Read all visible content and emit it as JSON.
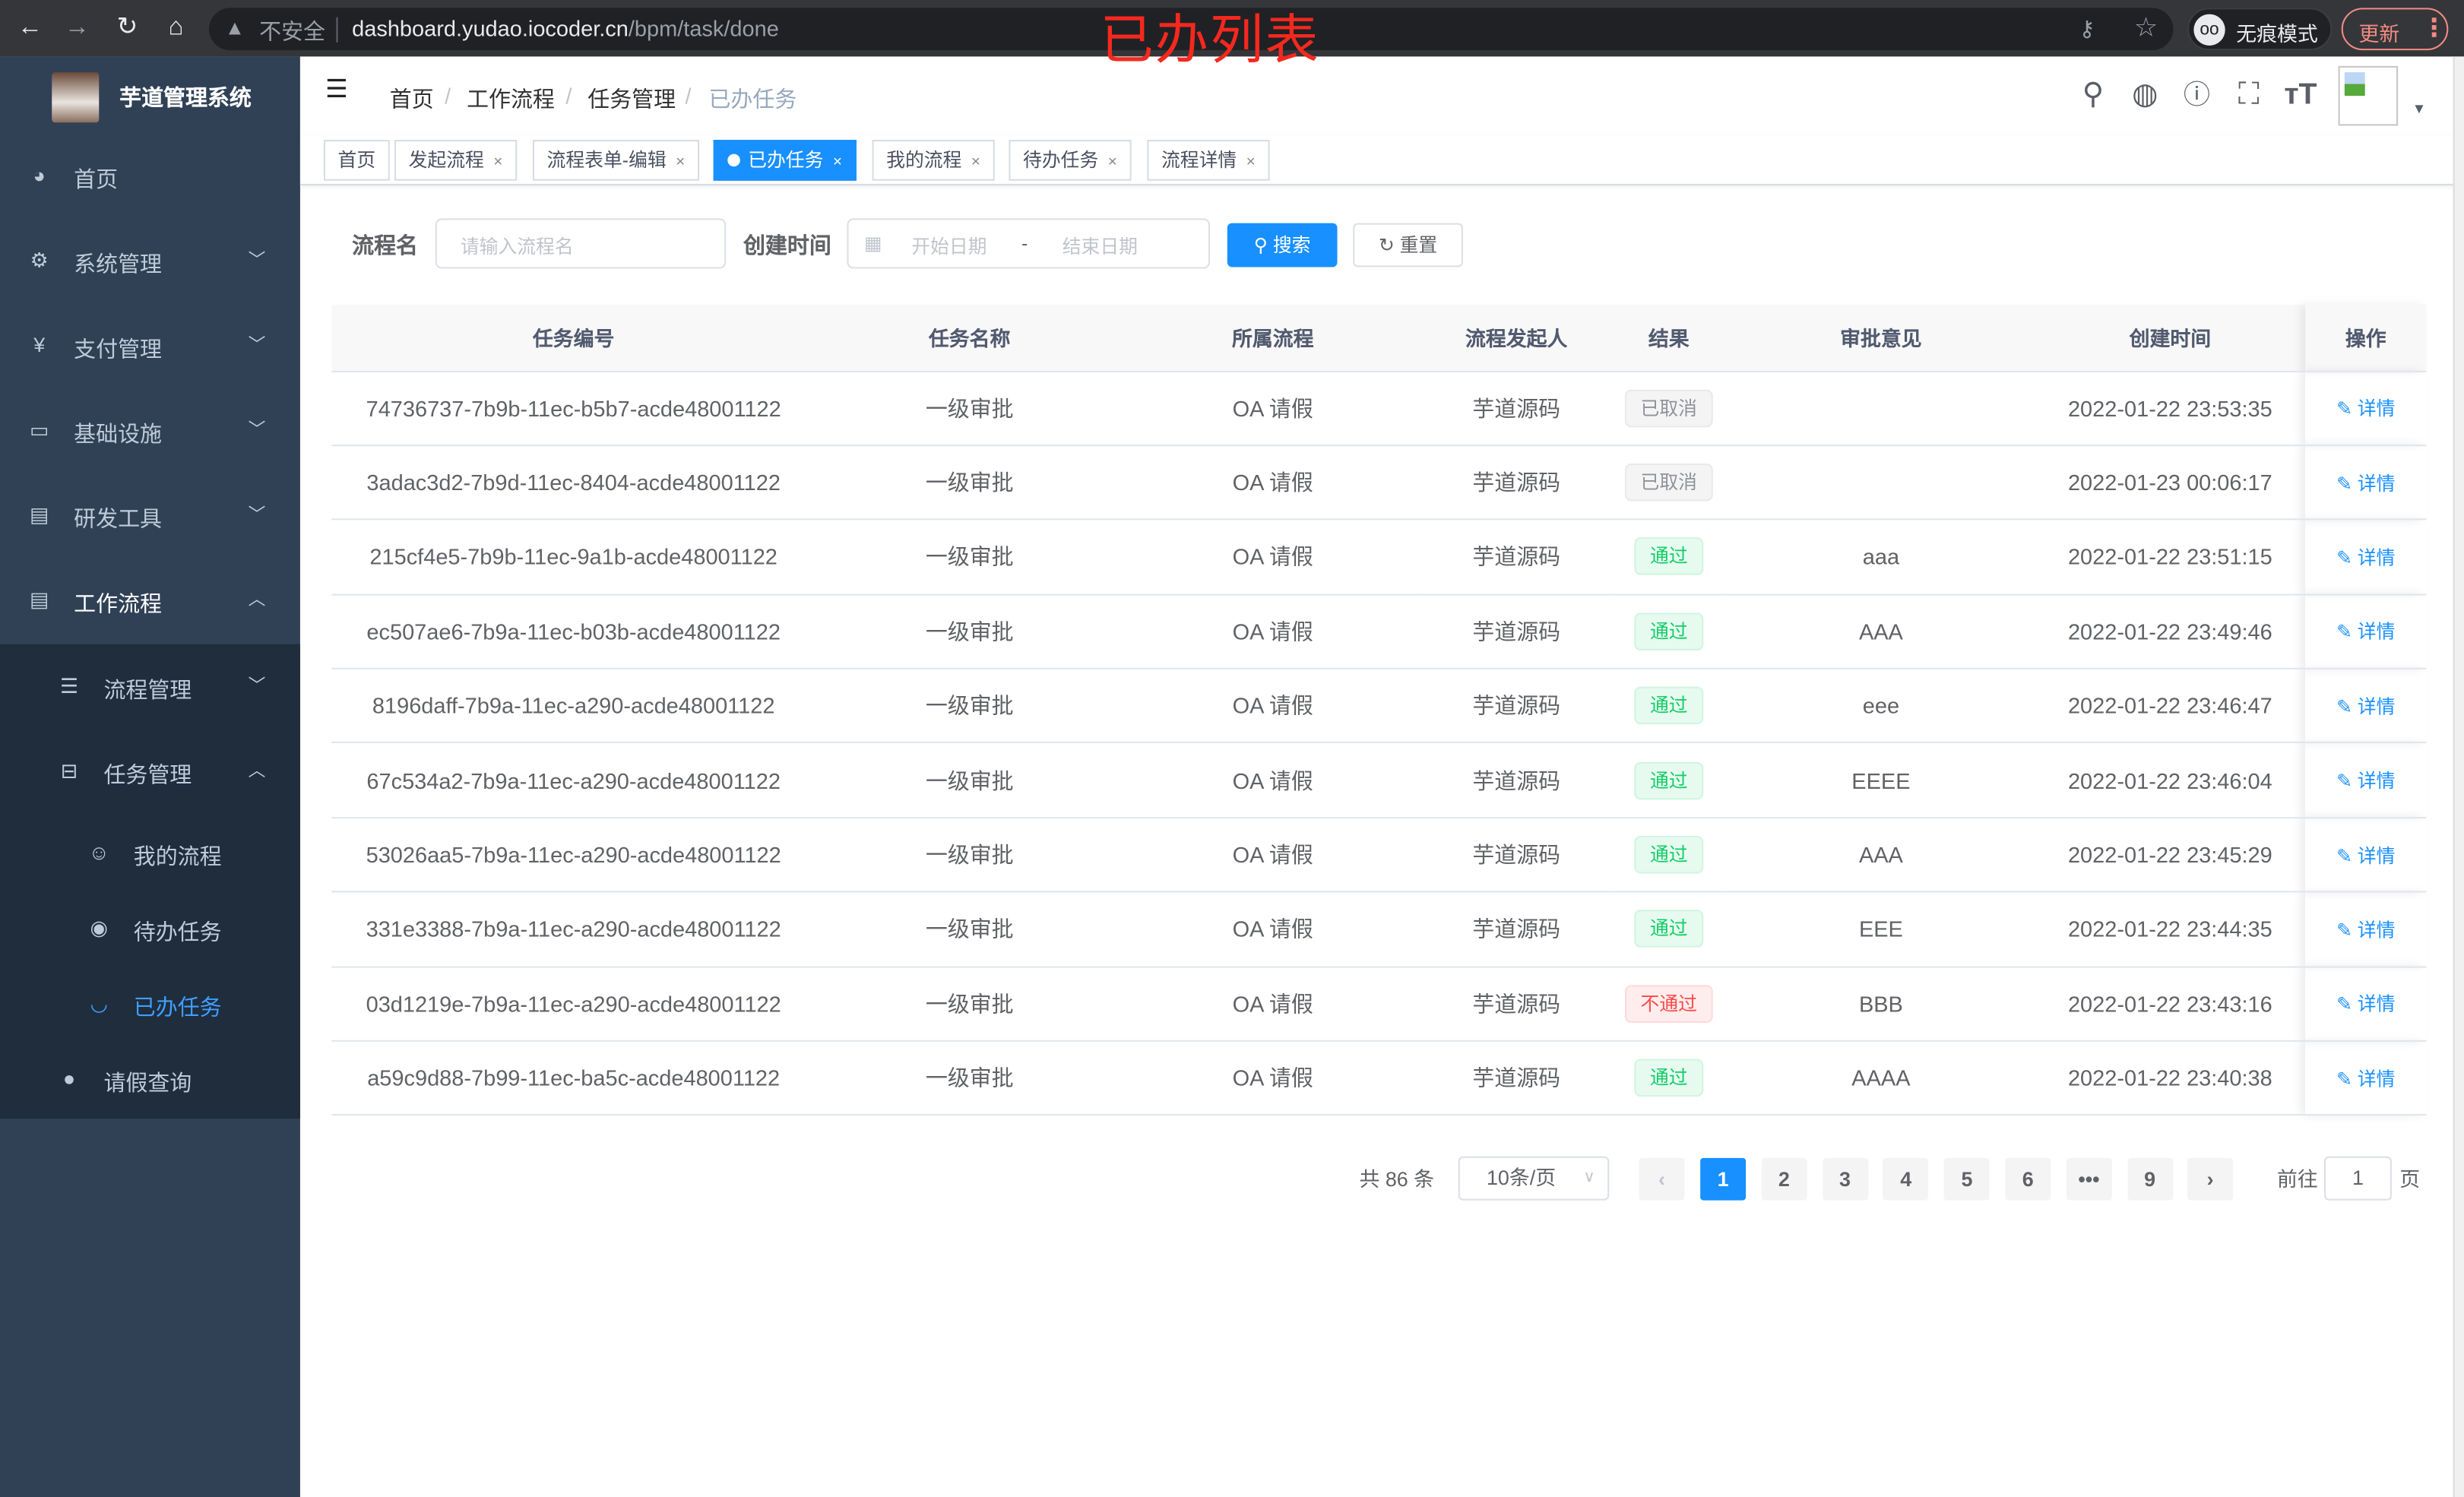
{
  "browser": {
    "insecure_label": "不安全",
    "url_host": "dashboard.yudao.iocoder.cn",
    "url_path": "/bpm/task/done",
    "incognito_label": "无痕模式",
    "update_label": "更新"
  },
  "overlay_title": "已办列表",
  "sidebar": {
    "app_name": "芋道管理系统",
    "items": [
      {
        "label": "首页",
        "icon": "dashboard-icon"
      },
      {
        "label": "系统管理",
        "icon": "gear-icon"
      },
      {
        "label": "支付管理",
        "icon": "yen-icon"
      },
      {
        "label": "基础设施",
        "icon": "monitor-icon"
      },
      {
        "label": "研发工具",
        "icon": "toolbox-icon"
      },
      {
        "label": "工作流程",
        "icon": "toolbox-icon"
      }
    ],
    "workflow_children": [
      {
        "label": "流程管理",
        "icon": "tree-list-icon"
      },
      {
        "label": "任务管理",
        "icon": "tree-icon"
      },
      {
        "label": "我的流程",
        "icon": "chat-icon"
      },
      {
        "label": "待办任务",
        "icon": "eye-icon"
      },
      {
        "label": "已办任务",
        "icon": "eye-closed-icon",
        "active": true
      },
      {
        "label": "请假查询",
        "icon": "user-icon"
      }
    ]
  },
  "breadcrumb": [
    "首页",
    "工作流程",
    "任务管理",
    "已办任务"
  ],
  "tags": [
    {
      "label": "首页",
      "closable": false
    },
    {
      "label": "发起流程",
      "closable": true
    },
    {
      "label": "流程表单-编辑",
      "closable": true
    },
    {
      "label": "已办任务",
      "closable": true,
      "active": true
    },
    {
      "label": "我的流程",
      "closable": true
    },
    {
      "label": "待办任务",
      "closable": true
    },
    {
      "label": "流程详情",
      "closable": true
    }
  ],
  "filters": {
    "name_label": "流程名",
    "name_placeholder": "请输入流程名",
    "time_label": "创建时间",
    "start_placeholder": "开始日期",
    "range_sep": "-",
    "end_placeholder": "结束日期",
    "search_label": "搜索",
    "reset_label": "重置"
  },
  "table": {
    "columns": [
      "任务编号",
      "任务名称",
      "所属流程",
      "流程发起人",
      "结果",
      "审批意见",
      "创建时间",
      "操作"
    ],
    "rows": [
      {
        "id": "74736737-7b9b-11ec-b5b7-acde48001122",
        "name": "一级审批",
        "process": "OA 请假",
        "starter": "芋道源码",
        "result": "已取消",
        "result_type": "info",
        "comment": "",
        "time": "2022-01-22 23:53:35",
        "action": "详情"
      },
      {
        "id": "3adac3d2-7b9d-11ec-8404-acde48001122",
        "name": "一级审批",
        "process": "OA 请假",
        "starter": "芋道源码",
        "result": "已取消",
        "result_type": "info",
        "comment": "",
        "time": "2022-01-23 00:06:17",
        "action": "详情"
      },
      {
        "id": "215cf4e5-7b9b-11ec-9a1b-acde48001122",
        "name": "一级审批",
        "process": "OA 请假",
        "starter": "芋道源码",
        "result": "通过",
        "result_type": "success",
        "comment": "aaa",
        "time": "2022-01-22 23:51:15",
        "action": "详情"
      },
      {
        "id": "ec507ae6-7b9a-11ec-b03b-acde48001122",
        "name": "一级审批",
        "process": "OA 请假",
        "starter": "芋道源码",
        "result": "通过",
        "result_type": "success",
        "comment": "AAA",
        "time": "2022-01-22 23:49:46",
        "action": "详情"
      },
      {
        "id": "8196daff-7b9a-11ec-a290-acde48001122",
        "name": "一级审批",
        "process": "OA 请假",
        "starter": "芋道源码",
        "result": "通过",
        "result_type": "success",
        "comment": "eee",
        "time": "2022-01-22 23:46:47",
        "action": "详情"
      },
      {
        "id": "67c534a2-7b9a-11ec-a290-acde48001122",
        "name": "一级审批",
        "process": "OA 请假",
        "starter": "芋道源码",
        "result": "通过",
        "result_type": "success",
        "comment": "EEEE",
        "time": "2022-01-22 23:46:04",
        "action": "详情"
      },
      {
        "id": "53026aa5-7b9a-11ec-a290-acde48001122",
        "name": "一级审批",
        "process": "OA 请假",
        "starter": "芋道源码",
        "result": "通过",
        "result_type": "success",
        "comment": "AAA",
        "time": "2022-01-22 23:45:29",
        "action": "详情"
      },
      {
        "id": "331e3388-7b9a-11ec-a290-acde48001122",
        "name": "一级审批",
        "process": "OA 请假",
        "starter": "芋道源码",
        "result": "通过",
        "result_type": "success",
        "comment": "EEE",
        "time": "2022-01-22 23:44:35",
        "action": "详情"
      },
      {
        "id": "03d1219e-7b9a-11ec-a290-acde48001122",
        "name": "一级审批",
        "process": "OA 请假",
        "starter": "芋道源码",
        "result": "不通过",
        "result_type": "danger",
        "comment": "BBB",
        "time": "2022-01-22 23:43:16",
        "action": "详情"
      },
      {
        "id": "a59c9d88-7b99-11ec-ba5c-acde48001122",
        "name": "一级审批",
        "process": "OA 请假",
        "starter": "芋道源码",
        "result": "通过",
        "result_type": "success",
        "comment": "AAAA",
        "time": "2022-01-22 23:40:38",
        "action": "详情"
      }
    ]
  },
  "pagination": {
    "total_label": "共 86 条",
    "page_size": "10条/页",
    "pages": [
      "1",
      "2",
      "3",
      "4",
      "5",
      "6",
      "•••",
      "9"
    ],
    "current": "1",
    "goto_label": "前往",
    "goto_value": "1",
    "page_unit": "页"
  },
  "colors": {
    "sidebar_bg": "#304156",
    "submenu_bg": "#1f2d3d",
    "primary": "#1890ff",
    "active_menu": "#409eff",
    "overlay_title": "#f5281e"
  }
}
